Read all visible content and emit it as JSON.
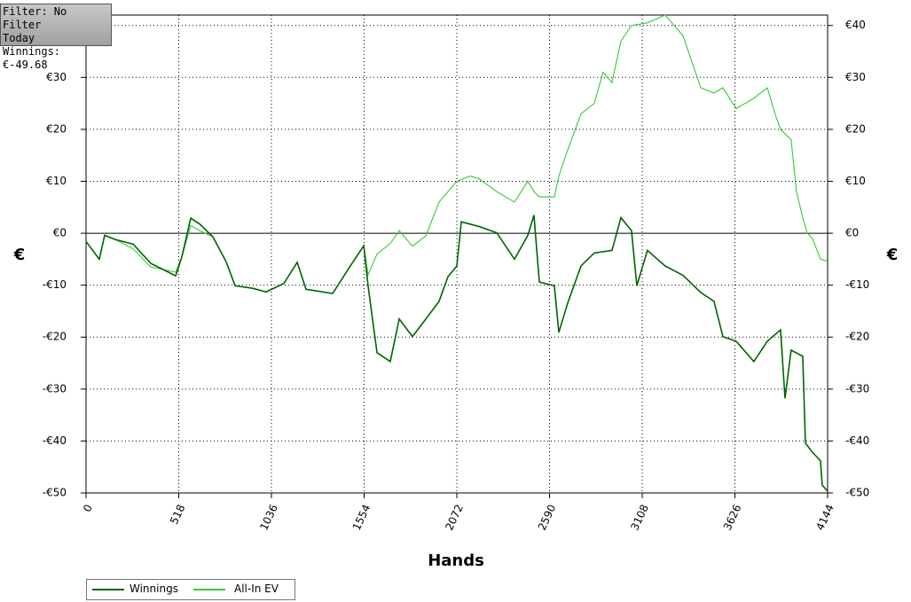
{
  "chart_data": {
    "type": "line",
    "info_box": [
      "Filter: No Filter",
      "Today",
      "Winnings: €-49.68"
    ],
    "x_label": "Hands",
    "y_label": "€",
    "xlim": [
      0,
      4144
    ],
    "xticks": [
      0,
      518,
      1036,
      1554,
      2072,
      2590,
      3108,
      3626,
      4144
    ],
    "ylim": [
      -50,
      42
    ],
    "yticks": [
      {
        "value": -50,
        "label": "-€50"
      },
      {
        "value": -40,
        "label": "-€40"
      },
      {
        "value": -30,
        "label": "-€30"
      },
      {
        "value": -20,
        "label": "-€20"
      },
      {
        "value": -10,
        "label": "-€10"
      },
      {
        "value": 0,
        "label": "€0"
      },
      {
        "value": 10,
        "label": "€10"
      },
      {
        "value": 20,
        "label": "€20"
      },
      {
        "value": 30,
        "label": "€30"
      },
      {
        "value": 40,
        "label": "€40"
      }
    ],
    "grid": true,
    "series": [
      {
        "name": "Winnings",
        "color": "#006400",
        "x": [
          0,
          74,
          104,
          163,
          263,
          362,
          501,
          535,
          585,
          634,
          709,
          783,
          833,
          932,
          1006,
          1105,
          1180,
          1229,
          1378,
          1477,
          1552,
          1576,
          1626,
          1700,
          1750,
          1824,
          1899,
          1973,
          2022,
          2072,
          2097,
          2196,
          2295,
          2394,
          2469,
          2503,
          2533,
          2617,
          2642,
          2691,
          2766,
          2840,
          2939,
          2989,
          3048,
          3078,
          3137,
          3236,
          3336,
          3435,
          3509,
          3559,
          3633,
          3732,
          3807,
          3881,
          3906,
          3940,
          4005,
          4020,
          4055,
          4104,
          4114,
          4144
        ],
        "values": [
          -1.6,
          -5,
          -0.4,
          -1.2,
          -2.1,
          -5.8,
          -8.2,
          -4.6,
          2.9,
          1.8,
          -0.7,
          -5.5,
          -10.1,
          -10.6,
          -11.3,
          -9.7,
          -5.6,
          -10.8,
          -11.6,
          -6.3,
          -2.4,
          -10.1,
          -23,
          -24.7,
          -16.5,
          -19.9,
          -16.5,
          -13.1,
          -8.4,
          -6.3,
          2.2,
          1.3,
          0.1,
          -5,
          -0.4,
          3.5,
          -9.4,
          -10.1,
          -19.1,
          -13.5,
          -6.3,
          -3.8,
          -3.3,
          3,
          0.5,
          -10.1,
          -3.3,
          -6.3,
          -8.1,
          -11.4,
          -13.1,
          -19.9,
          -20.8,
          -24.7,
          -20.8,
          -18.6,
          -31.8,
          -22.5,
          -23.7,
          -40.4,
          -42,
          -43.8,
          -48.5,
          -49.68
        ]
      },
      {
        "name": "All-In EV",
        "color": "#33cc33",
        "x": [
          0,
          74,
          104,
          163,
          263,
          362,
          501,
          535,
          585,
          634,
          709,
          783,
          833,
          932,
          1006,
          1105,
          1180,
          1229,
          1378,
          1477,
          1552,
          1576,
          1626,
          1700,
          1750,
          1824,
          1899,
          1973,
          2022,
          2072,
          2146,
          2196,
          2295,
          2394,
          2469,
          2503,
          2533,
          2617,
          2642,
          2691,
          2766,
          2840,
          2889,
          2939,
          2989,
          3048,
          3137,
          3236,
          3336,
          3435,
          3509,
          3559,
          3633,
          3732,
          3807,
          3850,
          3881,
          3940,
          3970,
          4005,
          4030,
          4060,
          4104,
          4144
        ],
        "values": [
          -1.6,
          -5,
          -0.4,
          -1.2,
          -3,
          -6.5,
          -7.5,
          -4.6,
          1.5,
          0.5,
          -0.7,
          -5.5,
          -10.1,
          -10.6,
          -11.3,
          -9.7,
          -5.6,
          -10.8,
          -11.6,
          -6.3,
          -2.4,
          -8,
          -4,
          -2,
          0.5,
          -2.5,
          -0.5,
          6,
          8,
          10,
          11,
          10.5,
          8,
          6,
          10,
          8,
          7,
          7,
          11,
          16,
          23,
          25,
          31,
          29,
          37,
          40,
          40.5,
          42,
          38,
          28,
          27,
          28,
          24,
          26,
          28,
          23,
          20,
          18,
          8,
          3,
          0,
          -1,
          -5,
          -5.4
        ]
      }
    ]
  }
}
